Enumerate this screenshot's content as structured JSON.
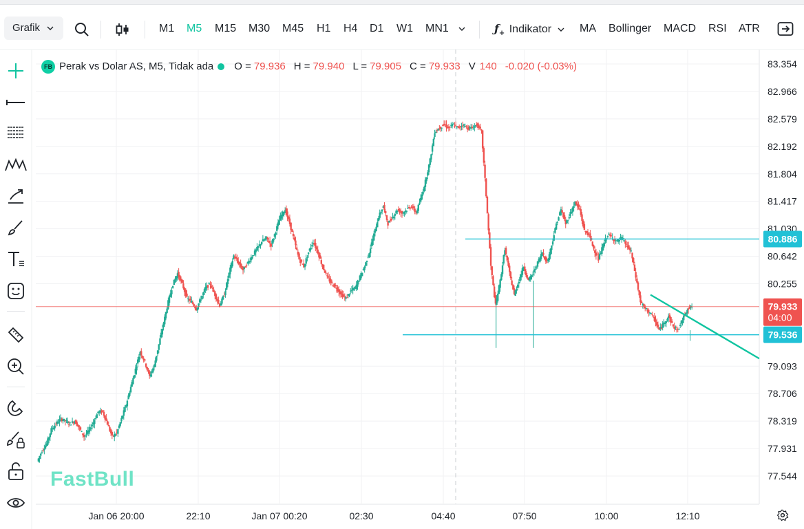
{
  "toolbar": {
    "chart_type": "Grafik",
    "timeframes": [
      "M1",
      "M5",
      "M15",
      "M30",
      "M45",
      "H1",
      "H4",
      "D1",
      "W1",
      "MN1"
    ],
    "active_timeframe": "M5",
    "indicator_label": "Indikator",
    "indicators": [
      "MA",
      "Bollinger",
      "MACD",
      "RSI",
      "ATR"
    ]
  },
  "legend": {
    "symbol_badge": "FB",
    "title": "Perak vs Dolar AS, M5, Tidak ada",
    "open_label": "O =",
    "open": "79.936",
    "high_label": "H =",
    "high": "79.940",
    "low_label": "L =",
    "low": "79.905",
    "close_label": "C =",
    "close": "79.933",
    "volume_label": "V",
    "volume": "140",
    "change": "-0.020 (-0.03%)"
  },
  "watermark": "FastBull",
  "colors": {
    "up": "#22ab94",
    "down": "#ef5350",
    "accent": "#10c4a0",
    "hline": "#21c1d6",
    "trend": "#10c4a0",
    "price_line": "#ef5350"
  },
  "icons": [
    "crosshair-icon",
    "horizontal-line-icon",
    "fib-lines-icon",
    "pattern-icon",
    "arrow-tool-icon",
    "brush-icon",
    "text-tool-icon",
    "emoji-icon",
    "ruler-icon",
    "zoom-in-icon",
    "magnet-icon",
    "lock-draw-icon",
    "unlock-icon",
    "eye-icon",
    "settings-icon",
    "search-icon",
    "candle-type-icon",
    "fullscreen-exit-icon"
  ],
  "chart_data": {
    "type": "candlestick",
    "y_ticks": [
      "83.354",
      "82.966",
      "82.579",
      "82.192",
      "81.804",
      "81.417",
      "81.030",
      "80.642",
      "80.255",
      "79.093",
      "78.706",
      "78.319",
      "77.931",
      "77.544"
    ],
    "x_ticks": [
      "Jan 06 20:00",
      "22:10",
      "Jan 07 00:20",
      "02:30",
      "04:40",
      "07:50",
      "10:00",
      "12:10"
    ],
    "ylim": [
      77.25,
      83.55
    ],
    "grid": true,
    "price_labels": [
      {
        "value": "80.886",
        "color": "#21c1d6"
      },
      {
        "value": "79.933",
        "sub": "04:00",
        "color": "#ef5350"
      },
      {
        "value": "79.536",
        "color": "#21c1d6"
      }
    ],
    "horizontal_lines": [
      80.886,
      79.536
    ],
    "current_price": 79.933,
    "trendline": {
      "from": [
        79.95,
        80.1
      ],
      "to": [
        79.12,
        79.2
      ]
    },
    "path_points": [
      [
        0,
        77.75
      ],
      [
        4,
        77.9
      ],
      [
        8,
        78.0
      ],
      [
        12,
        78.2
      ],
      [
        16,
        78.28
      ],
      [
        20,
        78.35
      ],
      [
        24,
        78.32
      ],
      [
        28,
        78.28
      ],
      [
        32,
        78.32
      ],
      [
        36,
        78.22
      ],
      [
        40,
        78.1
      ],
      [
        44,
        78.18
      ],
      [
        48,
        78.3
      ],
      [
        52,
        78.45
      ],
      [
        56,
        78.45
      ],
      [
        60,
        78.28
      ],
      [
        64,
        78.1
      ],
      [
        68,
        78.15
      ],
      [
        72,
        78.35
      ],
      [
        76,
        78.55
      ],
      [
        80,
        78.8
      ],
      [
        84,
        79.05
      ],
      [
        88,
        79.3
      ],
      [
        92,
        79.15
      ],
      [
        96,
        78.95
      ],
      [
        100,
        79.1
      ],
      [
        104,
        79.4
      ],
      [
        108,
        79.7
      ],
      [
        112,
        80.0
      ],
      [
        116,
        80.25
      ],
      [
        120,
        80.4
      ],
      [
        124,
        80.25
      ],
      [
        128,
        80.05
      ],
      [
        132,
        80.0
      ],
      [
        136,
        79.9
      ],
      [
        140,
        80.05
      ],
      [
        144,
        80.2
      ],
      [
        148,
        80.25
      ],
      [
        152,
        80.1
      ],
      [
        156,
        79.95
      ],
      [
        160,
        80.1
      ],
      [
        164,
        80.4
      ],
      [
        168,
        80.65
      ],
      [
        172,
        80.55
      ],
      [
        176,
        80.45
      ],
      [
        180,
        80.55
      ],
      [
        184,
        80.65
      ],
      [
        188,
        80.75
      ],
      [
        192,
        80.85
      ],
      [
        196,
        80.9
      ],
      [
        200,
        80.8
      ],
      [
        204,
        81.0
      ],
      [
        208,
        81.2
      ],
      [
        212,
        81.3
      ],
      [
        216,
        81.1
      ],
      [
        220,
        80.85
      ],
      [
        224,
        80.6
      ],
      [
        228,
        80.5
      ],
      [
        232,
        80.7
      ],
      [
        236,
        80.85
      ],
      [
        240,
        80.7
      ],
      [
        244,
        80.5
      ],
      [
        248,
        80.35
      ],
      [
        252,
        80.25
      ],
      [
        256,
        80.2
      ],
      [
        260,
        80.1
      ],
      [
        264,
        80.05
      ],
      [
        268,
        80.15
      ],
      [
        272,
        80.2
      ],
      [
        276,
        80.35
      ],
      [
        280,
        80.5
      ],
      [
        284,
        80.7
      ],
      [
        288,
        80.95
      ],
      [
        292,
        81.2
      ],
      [
        296,
        81.35
      ],
      [
        300,
        81.1
      ],
      [
        304,
        81.2
      ],
      [
        308,
        81.3
      ],
      [
        312,
        81.25
      ],
      [
        316,
        81.3
      ],
      [
        320,
        81.35
      ],
      [
        324,
        81.25
      ],
      [
        328,
        81.45
      ],
      [
        332,
        81.7
      ],
      [
        336,
        82.0
      ],
      [
        340,
        82.4
      ],
      [
        344,
        82.45
      ],
      [
        348,
        82.5
      ],
      [
        352,
        82.45
      ],
      [
        356,
        82.5
      ],
      [
        360,
        82.45
      ],
      [
        364,
        82.5
      ],
      [
        368,
        82.45
      ],
      [
        372,
        82.45
      ],
      [
        376,
        82.5
      ],
      [
        380,
        82.4
      ],
      [
        384,
        81.5
      ],
      [
        388,
        80.5
      ],
      [
        392,
        79.95
      ],
      [
        396,
        80.3
      ],
      [
        400,
        80.75
      ],
      [
        404,
        80.4
      ],
      [
        408,
        80.1
      ],
      [
        412,
        80.3
      ],
      [
        416,
        80.5
      ],
      [
        420,
        80.3
      ],
      [
        424,
        80.4
      ],
      [
        428,
        80.55
      ],
      [
        432,
        80.7
      ],
      [
        436,
        80.55
      ],
      [
        440,
        80.8
      ],
      [
        444,
        81.1
      ],
      [
        448,
        81.3
      ],
      [
        452,
        81.1
      ],
      [
        456,
        81.25
      ],
      [
        460,
        81.4
      ],
      [
        464,
        81.3
      ],
      [
        468,
        81.0
      ],
      [
        472,
        80.95
      ],
      [
        476,
        80.75
      ],
      [
        480,
        80.6
      ],
      [
        484,
        80.8
      ],
      [
        488,
        80.95
      ],
      [
        492,
        80.9
      ],
      [
        496,
        80.85
      ],
      [
        500,
        80.9
      ],
      [
        504,
        80.8
      ],
      [
        508,
        80.7
      ],
      [
        512,
        80.35
      ],
      [
        516,
        80.0
      ],
      [
        520,
        79.9
      ],
      [
        524,
        79.85
      ],
      [
        528,
        79.75
      ],
      [
        532,
        79.6
      ],
      [
        536,
        79.7
      ],
      [
        540,
        79.8
      ],
      [
        544,
        79.65
      ],
      [
        548,
        79.6
      ],
      [
        552,
        79.75
      ],
      [
        556,
        79.9
      ],
      [
        560,
        79.93
      ]
    ]
  }
}
